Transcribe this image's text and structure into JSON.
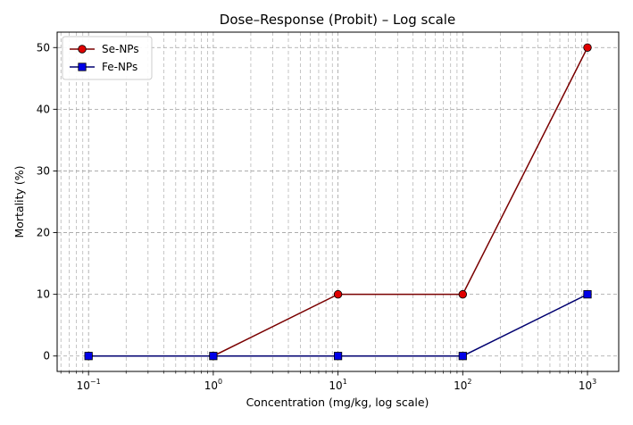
{
  "chart_data": {
    "type": "line",
    "title": "Dose–Response (Probit) – Log scale",
    "xlabel": "Concentration (mg/kg, log scale)",
    "ylabel": "Mortality (%)",
    "xscale": "log",
    "xlim": [
      0.056,
      1780
    ],
    "ylim": [
      -2.5,
      52.5
    ],
    "x": [
      0.1,
      1,
      10,
      100,
      1000
    ],
    "x_ticks": [
      {
        "value": 0.1,
        "base": "10",
        "exp": "−1"
      },
      {
        "value": 1,
        "base": "10",
        "exp": "0"
      },
      {
        "value": 10,
        "base": "10",
        "exp": "1"
      },
      {
        "value": 100,
        "base": "10",
        "exp": "2"
      },
      {
        "value": 1000,
        "base": "10",
        "exp": "3"
      }
    ],
    "y_ticks": [
      0,
      10,
      20,
      30,
      40,
      50
    ],
    "grid": true,
    "legend_position": "top-left",
    "series": [
      {
        "name": "Se-NPs",
        "values": [
          0,
          0,
          10,
          10,
          50
        ],
        "marker": "circle",
        "marker_color": "#e00000",
        "line_color": "#7a0000"
      },
      {
        "name": "Fe-NPs",
        "values": [
          0,
          0,
          0,
          0,
          10
        ],
        "marker": "square",
        "marker_color": "#0000e8",
        "line_color": "#000070"
      }
    ]
  }
}
